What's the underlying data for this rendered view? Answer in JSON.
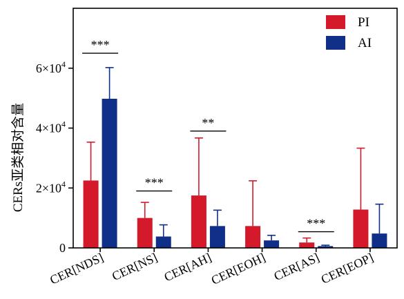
{
  "chart_data": {
    "type": "bar",
    "title": "",
    "xlabel": "",
    "ylabel": "CERs亚类相对含量",
    "ylim": [
      0,
      80000
    ],
    "yticks": [
      {
        "value": 0,
        "base": "0",
        "exp": ""
      },
      {
        "value": 20000,
        "base": "2×10",
        "exp": "4"
      },
      {
        "value": 40000,
        "base": "4×10",
        "exp": "4"
      },
      {
        "value": 60000,
        "base": "6×10",
        "exp": "4"
      }
    ],
    "categories": [
      "CER[NDS]",
      "CER[NS]",
      "CER[AH]",
      "CER[EOH]",
      "CER[AS]",
      "CER[EOP]"
    ],
    "series": [
      {
        "name": "PI",
        "color": "#d41a2a",
        "values": [
          22500,
          10000,
          17500,
          7300,
          1800,
          12800
        ],
        "errors": [
          12800,
          5200,
          19200,
          15100,
          1500,
          20500
        ]
      },
      {
        "name": "AI",
        "color": "#0f2f88",
        "values": [
          49800,
          3800,
          7300,
          2500,
          600,
          4800
        ],
        "errors": [
          10400,
          3900,
          5300,
          1700,
          300,
          9800
        ]
      }
    ],
    "significance": [
      {
        "category_index": 0,
        "label": "***",
        "level": 65000
      },
      {
        "category_index": 1,
        "label": "***",
        "level": 19000
      },
      {
        "category_index": 2,
        "label": "**",
        "level": 39000
      },
      {
        "category_index": 4,
        "label": "***",
        "level": 5400
      }
    ],
    "legend": {
      "position": "top-right",
      "entries": [
        "PI",
        "AI"
      ]
    },
    "grid": false
  }
}
